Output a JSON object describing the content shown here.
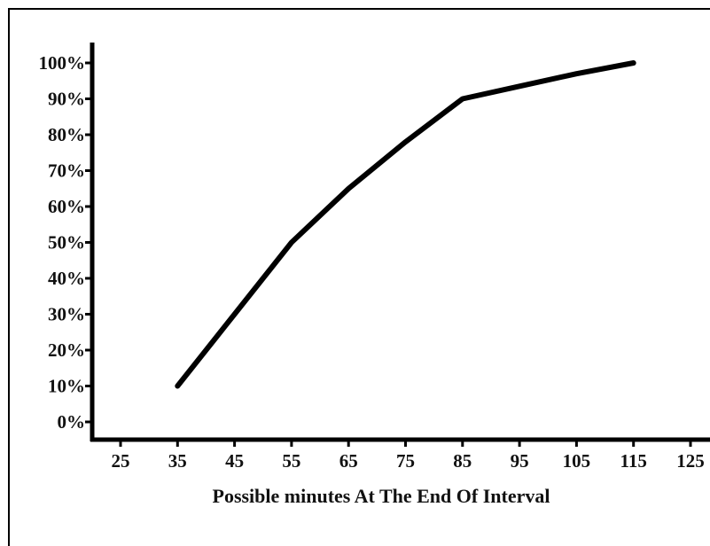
{
  "chart_data": {
    "type": "line",
    "title": "",
    "xlabel": "Possible minutes At The End Of Interval",
    "ylabel": "",
    "x_ticks": [
      "25",
      "35",
      "45",
      "55",
      "65",
      "75",
      "85",
      "95",
      "105",
      "115",
      "125"
    ],
    "y_ticks": [
      "0%",
      "10%",
      "20%",
      "30%",
      "40%",
      "50%",
      "60%",
      "70%",
      "80%",
      "90%",
      "100%"
    ],
    "xlim": [
      25,
      125
    ],
    "ylim": [
      0,
      100
    ],
    "grid": false,
    "legend": "none",
    "series": [
      {
        "x": [
          35,
          45,
          55,
          65,
          75,
          85,
          95,
          105,
          115
        ],
        "y": [
          10,
          30,
          50,
          65,
          78,
          90,
          93.5,
          97,
          100
        ],
        "color": "#000000"
      }
    ]
  }
}
